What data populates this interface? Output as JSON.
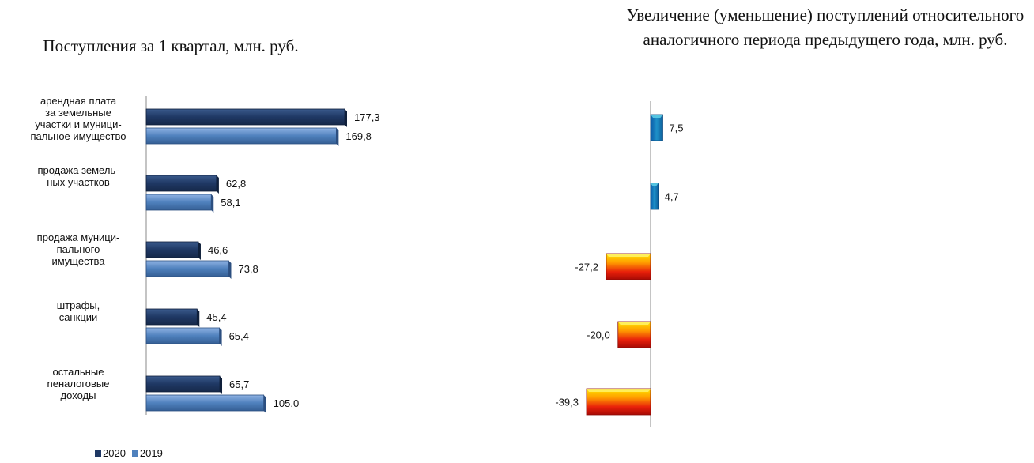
{
  "chart_data": [
    {
      "type": "bar",
      "orientation": "horizontal",
      "title": "Поступления за 1 квартал, млн. руб.",
      "categories": [
        "арендная плата\nза земельные\nучастки и муници-\nпальное имущество",
        "продажа земель-\nных участков",
        "продажа муници-\nпального\nимущества",
        "штрафы,\nсанкции",
        "остальные\nneналоговые\nдоходы"
      ],
      "series": [
        {
          "name": "2020",
          "values": [
            177.3,
            62.8,
            46.6,
            45.4,
            65.7
          ],
          "labels": [
            "177,3",
            "62,8",
            "46,6",
            "45,4",
            "65,7"
          ],
          "color": "#1f3864"
        },
        {
          "name": "2019",
          "values": [
            169.8,
            58.1,
            73.8,
            65.4,
            105.0
          ],
          "labels": [
            "169,8",
            "58,1",
            "73,8",
            "65,4",
            "105,0"
          ],
          "color": "#4f81bd"
        }
      ],
      "legend": "bottom-left",
      "grid": false
    },
    {
      "type": "bar",
      "orientation": "horizontal",
      "title": "Увеличение (уменьшение) поступлений относительного аналогичного периода предыдущего года, млн. руб.",
      "values": [
        7.5,
        4.7,
        -27.2,
        -20.0,
        -39.3
      ],
      "labels": [
        "7,5",
        "4,7",
        "-27,2",
        "-20,0",
        "-39,3"
      ],
      "colors": {
        "positive": "#1e90c8",
        "negative": "#e8200a"
      },
      "grid": false
    }
  ]
}
